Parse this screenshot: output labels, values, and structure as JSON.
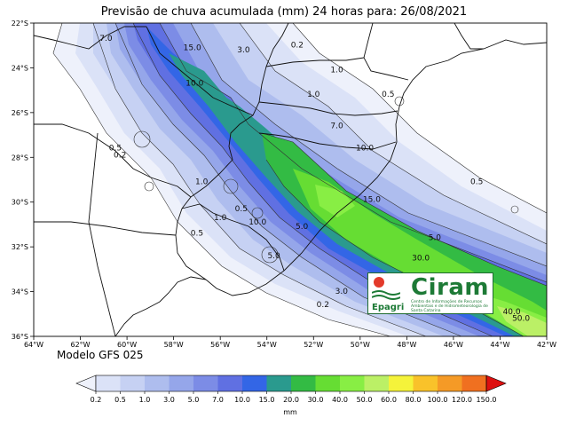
{
  "title": "Previsão de chuva acumulada (mm) 24 horas  para: 26/08/2021",
  "model_label": "Modelo GFS 025",
  "colorbar": {
    "unit": "mm",
    "levels": [
      "0.2",
      "0.5",
      "1.0",
      "3.0",
      "5.0",
      "7.0",
      "10.0",
      "15.0",
      "20.0",
      "30.0",
      "40.0",
      "50.0",
      "60.0",
      "80.0",
      "100.0",
      "120.0",
      "150.0"
    ],
    "colors": [
      "#eef1fb",
      "#dbe2f7",
      "#c6d1f3",
      "#aebdee",
      "#95a6ea",
      "#7c8ce6",
      "#6070e2",
      "#3366e6",
      "#2a9a8e",
      "#33bb44",
      "#66dd33",
      "#88ee44",
      "#bbf066",
      "#f5f33a",
      "#f9c22a",
      "#f59a26",
      "#f07020",
      "#e84018",
      "#dd1010"
    ]
  },
  "logo": {
    "name": "Ciram",
    "brand": "Epagri",
    "subtitle": "Centro de Informações de Recursos Ambientais e de Hidrometeorologia de Santa Catarina"
  },
  "axes": {
    "lon_ticks": [
      "64°W",
      "62°W",
      "60°W",
      "58°W",
      "56°W",
      "54°W",
      "52°W",
      "50°W",
      "48°W",
      "46°W",
      "44°W",
      "42°W"
    ],
    "lat_ticks": [
      "22°S",
      "24°S",
      "26°S",
      "28°S",
      "30°S",
      "32°S",
      "34°S",
      "36°S"
    ],
    "lon_range": [
      -64,
      -42
    ],
    "lat_range": [
      -36,
      -22
    ]
  },
  "contour_labels": [
    {
      "text": "7.0",
      "lon": -60.9,
      "lat": -22.8
    },
    {
      "text": "15.0",
      "lon": -57.2,
      "lat": -23.2
    },
    {
      "text": "10.0",
      "lon": -57.1,
      "lat": -24.8
    },
    {
      "text": "0.2",
      "lon": -52.7,
      "lat": -23.1
    },
    {
      "text": "1.0",
      "lon": -51.0,
      "lat": -24.2
    },
    {
      "text": "3.0",
      "lon": -55.0,
      "lat": -23.3
    },
    {
      "text": "1.0",
      "lon": -52.0,
      "lat": -25.3
    },
    {
      "text": "0.5",
      "lon": -48.8,
      "lat": -25.3
    },
    {
      "text": "7.0",
      "lon": -51.0,
      "lat": -26.7
    },
    {
      "text": "10.0",
      "lon": -49.8,
      "lat": -27.7
    },
    {
      "text": "0.5",
      "lon": -60.5,
      "lat": -27.7
    },
    {
      "text": "0.2",
      "lon": -60.3,
      "lat": -28.0
    },
    {
      "text": "0.5",
      "lon": -45.0,
      "lat": -29.2
    },
    {
      "text": "1.0",
      "lon": -56.8,
      "lat": -29.2
    },
    {
      "text": "15.0",
      "lon": -49.5,
      "lat": -30.0
    },
    {
      "text": "0.5",
      "lon": -55.1,
      "lat": -30.4
    },
    {
      "text": "1.0",
      "lon": -56.0,
      "lat": -30.8
    },
    {
      "text": "10.0",
      "lon": -54.4,
      "lat": -31.0
    },
    {
      "text": "0.5",
      "lon": -57.0,
      "lat": -31.5
    },
    {
      "text": "5.0",
      "lon": -52.5,
      "lat": -31.2
    },
    {
      "text": "5.0",
      "lon": -53.7,
      "lat": -32.5
    },
    {
      "text": "5.0",
      "lon": -46.8,
      "lat": -31.7
    },
    {
      "text": "30.0",
      "lon": -47.4,
      "lat": -32.6
    },
    {
      "text": "3.0",
      "lon": -50.8,
      "lat": -34.1
    },
    {
      "text": "0.2",
      "lon": -51.6,
      "lat": -34.7
    },
    {
      "text": "40.0",
      "lon": -43.5,
      "lat": -35.0
    },
    {
      "text": "50.0",
      "lon": -43.1,
      "lat": -35.3
    }
  ]
}
